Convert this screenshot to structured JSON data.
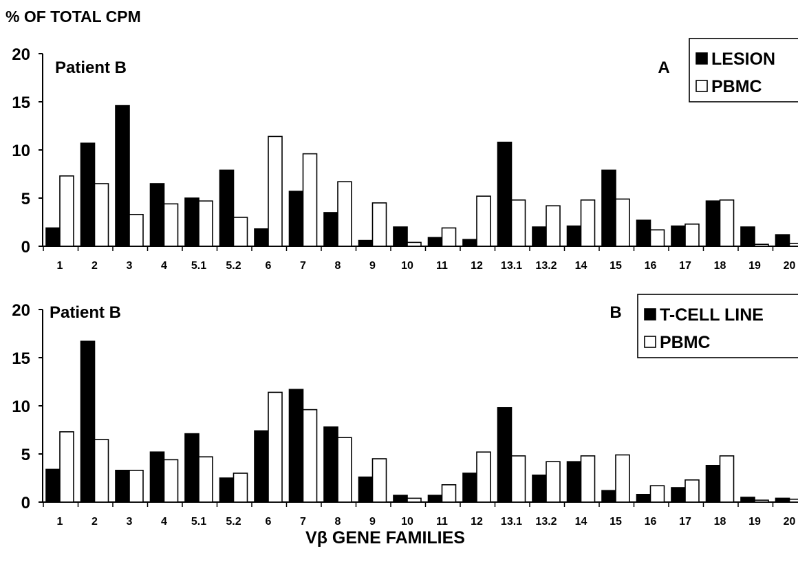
{
  "figure": {
    "ylabel": "% OF TOTAL CPM",
    "xlabel": "Vβ GENE FAMILIES"
  },
  "chart_data": [
    {
      "type": "bar",
      "panel_letter": "A",
      "subtitle": "Patient B",
      "ylim": [
        0,
        20
      ],
      "yticks": [
        0,
        5,
        10,
        15,
        20
      ],
      "categories": [
        "1",
        "2",
        "3",
        "4",
        "5.1",
        "5.2",
        "6",
        "7",
        "8",
        "9",
        "10",
        "11",
        "12",
        "13.1",
        "13.2",
        "14",
        "15",
        "16",
        "17",
        "18",
        "19",
        "20"
      ],
      "series": [
        {
          "name": "LESION",
          "color": "#000000",
          "values": [
            1.9,
            10.7,
            14.6,
            6.5,
            5.0,
            7.9,
            1.8,
            5.7,
            3.5,
            0.6,
            2.0,
            0.9,
            0.7,
            10.8,
            2.0,
            2.1,
            7.9,
            2.7,
            2.1,
            4.7,
            2.0,
            1.2
          ]
        },
        {
          "name": "PBMC",
          "color": "#ffffff",
          "values": [
            7.3,
            6.5,
            3.3,
            4.4,
            4.7,
            3.0,
            11.4,
            9.6,
            6.7,
            4.5,
            0.4,
            1.9,
            5.2,
            4.8,
            4.2,
            4.8,
            4.9,
            1.7,
            2.3,
            4.8,
            0.2,
            0.3
          ]
        }
      ],
      "legend": "top-right"
    },
    {
      "type": "bar",
      "panel_letter": "B",
      "subtitle": "Patient B",
      "ylim": [
        0,
        20
      ],
      "yticks": [
        0,
        5,
        10,
        15,
        20
      ],
      "categories": [
        "1",
        "2",
        "3",
        "4",
        "5.1",
        "5.2",
        "6",
        "7",
        "8",
        "9",
        "10",
        "11",
        "12",
        "13.1",
        "13.2",
        "14",
        "15",
        "16",
        "17",
        "18",
        "19",
        "20"
      ],
      "series": [
        {
          "name": "T-CELL LINE",
          "color": "#000000",
          "values": [
            3.4,
            16.7,
            3.3,
            5.2,
            7.1,
            2.5,
            7.4,
            11.7,
            7.8,
            2.6,
            0.7,
            0.7,
            3.0,
            9.8,
            2.8,
            4.2,
            1.2,
            0.8,
            1.5,
            3.8,
            0.5,
            0.4
          ]
        },
        {
          "name": "PBMC",
          "color": "#ffffff",
          "values": [
            7.3,
            6.5,
            3.3,
            4.4,
            4.7,
            3.0,
            11.4,
            9.6,
            6.7,
            4.5,
            0.4,
            1.8,
            5.2,
            4.8,
            4.2,
            4.8,
            4.9,
            1.7,
            2.3,
            4.8,
            0.2,
            0.3
          ]
        }
      ],
      "legend": "top-right"
    }
  ]
}
